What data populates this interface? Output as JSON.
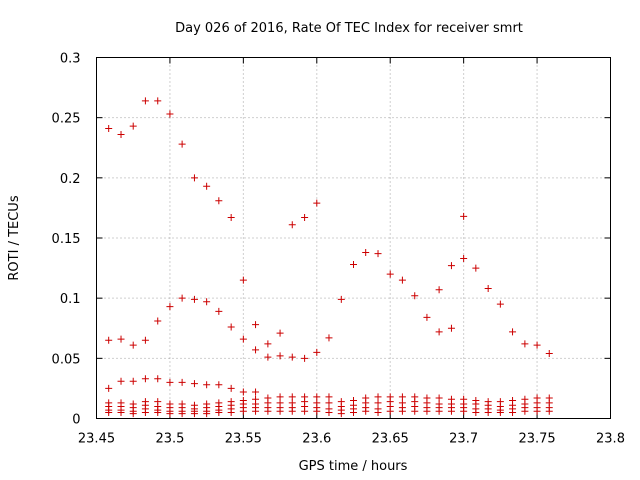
{
  "chart_data": {
    "type": "scatter",
    "title": "Day 026 of 2016, Rate Of TEC Index for receiver smrt",
    "xlabel": "GPS time / hours",
    "ylabel": "ROTI / TECUs",
    "xlim": [
      23.45,
      23.8
    ],
    "ylim": [
      0,
      0.3
    ],
    "x_ticks": [
      23.45,
      23.5,
      23.55,
      23.6,
      23.65,
      23.7,
      23.75,
      23.8
    ],
    "x_tick_labels": [
      "23.45",
      "23.5",
      "23.55",
      "23.6",
      "23.65",
      "23.7",
      "23.75",
      "23.8"
    ],
    "y_ticks": [
      0,
      0.05,
      0.1,
      0.15,
      0.2,
      0.25,
      0.3
    ],
    "y_tick_labels": [
      "0",
      "0.05",
      "0.1",
      "0.15",
      "0.2",
      "0.25",
      "0.3"
    ],
    "grid": true,
    "marker": "+",
    "color": "#cc0000",
    "series": [
      {
        "name": "receiver smrt",
        "points": [
          [
            23.4583,
            0.241
          ],
          [
            23.4667,
            0.236
          ],
          [
            23.475,
            0.243
          ],
          [
            23.4833,
            0.264
          ],
          [
            23.4917,
            0.264
          ],
          [
            23.5,
            0.253
          ],
          [
            23.5083,
            0.228
          ],
          [
            23.5167,
            0.2
          ],
          [
            23.525,
            0.193
          ],
          [
            23.5333,
            0.181
          ],
          [
            23.5417,
            0.167
          ],
          [
            23.55,
            0.115
          ],
          [
            23.4583,
            0.065
          ],
          [
            23.4667,
            0.066
          ],
          [
            23.475,
            0.061
          ],
          [
            23.4833,
            0.065
          ],
          [
            23.4917,
            0.081
          ],
          [
            23.5,
            0.093
          ],
          [
            23.5083,
            0.1
          ],
          [
            23.5167,
            0.099
          ],
          [
            23.525,
            0.097
          ],
          [
            23.5333,
            0.089
          ],
          [
            23.5417,
            0.076
          ],
          [
            23.55,
            0.066
          ],
          [
            23.5583,
            0.078
          ],
          [
            23.5583,
            0.057
          ],
          [
            23.5667,
            0.062
          ],
          [
            23.5667,
            0.051
          ],
          [
            23.575,
            0.071
          ],
          [
            23.575,
            0.052
          ],
          [
            23.5833,
            0.161
          ],
          [
            23.5833,
            0.051
          ],
          [
            23.5917,
            0.167
          ],
          [
            23.5917,
            0.05
          ],
          [
            23.6,
            0.179
          ],
          [
            23.6,
            0.055
          ],
          [
            23.6083,
            0.067
          ],
          [
            23.6167,
            0.099
          ],
          [
            23.625,
            0.128
          ],
          [
            23.6333,
            0.138
          ],
          [
            23.6417,
            0.137
          ],
          [
            23.65,
            0.12
          ],
          [
            23.6583,
            0.115
          ],
          [
            23.6667,
            0.102
          ],
          [
            23.675,
            0.084
          ],
          [
            23.6833,
            0.107
          ],
          [
            23.6833,
            0.072
          ],
          [
            23.6917,
            0.127
          ],
          [
            23.6917,
            0.075
          ],
          [
            23.7,
            0.168
          ],
          [
            23.7,
            0.133
          ],
          [
            23.7083,
            0.125
          ],
          [
            23.7167,
            0.108
          ],
          [
            23.725,
            0.095
          ],
          [
            23.7333,
            0.072
          ],
          [
            23.7417,
            0.062
          ],
          [
            23.75,
            0.061
          ],
          [
            23.7583,
            0.054
          ],
          [
            23.4583,
            0.025
          ],
          [
            23.4667,
            0.031
          ],
          [
            23.475,
            0.031
          ],
          [
            23.4833,
            0.033
          ],
          [
            23.4917,
            0.033
          ],
          [
            23.5,
            0.03
          ],
          [
            23.5083,
            0.03
          ],
          [
            23.5167,
            0.029
          ],
          [
            23.525,
            0.028
          ],
          [
            23.5333,
            0.028
          ],
          [
            23.5417,
            0.025
          ],
          [
            23.55,
            0.022
          ],
          [
            23.5583,
            0.022
          ],
          [
            23.4583,
            0.013
          ],
          [
            23.4583,
            0.01
          ],
          [
            23.4583,
            0.007
          ],
          [
            23.4583,
            0.005
          ],
          [
            23.4667,
            0.013
          ],
          [
            23.4667,
            0.01
          ],
          [
            23.4667,
            0.007
          ],
          [
            23.4667,
            0.005
          ],
          [
            23.475,
            0.012
          ],
          [
            23.475,
            0.009
          ],
          [
            23.475,
            0.006
          ],
          [
            23.475,
            0.004
          ],
          [
            23.4833,
            0.014
          ],
          [
            23.4833,
            0.011
          ],
          [
            23.4833,
            0.008
          ],
          [
            23.4833,
            0.005
          ],
          [
            23.4917,
            0.014
          ],
          [
            23.4917,
            0.01
          ],
          [
            23.4917,
            0.007
          ],
          [
            23.4917,
            0.005
          ],
          [
            23.5,
            0.012
          ],
          [
            23.5,
            0.009
          ],
          [
            23.5,
            0.006
          ],
          [
            23.5,
            0.004
          ],
          [
            23.5083,
            0.012
          ],
          [
            23.5083,
            0.009
          ],
          [
            23.5083,
            0.006
          ],
          [
            23.5083,
            0.004
          ],
          [
            23.5167,
            0.011
          ],
          [
            23.5167,
            0.008
          ],
          [
            23.5167,
            0.006
          ],
          [
            23.5167,
            0.004
          ],
          [
            23.525,
            0.012
          ],
          [
            23.525,
            0.009
          ],
          [
            23.525,
            0.006
          ],
          [
            23.525,
            0.004
          ],
          [
            23.5333,
            0.013
          ],
          [
            23.5333,
            0.01
          ],
          [
            23.5333,
            0.007
          ],
          [
            23.5333,
            0.005
          ],
          [
            23.5417,
            0.014
          ],
          [
            23.5417,
            0.011
          ],
          [
            23.5417,
            0.008
          ],
          [
            23.5417,
            0.005
          ],
          [
            23.55,
            0.015
          ],
          [
            23.55,
            0.012
          ],
          [
            23.55,
            0.009
          ],
          [
            23.55,
            0.006
          ],
          [
            23.5583,
            0.016
          ],
          [
            23.5583,
            0.012
          ],
          [
            23.5583,
            0.009
          ],
          [
            23.5583,
            0.006
          ],
          [
            23.5667,
            0.017
          ],
          [
            23.5667,
            0.013
          ],
          [
            23.5667,
            0.009
          ],
          [
            23.5667,
            0.006
          ],
          [
            23.575,
            0.018
          ],
          [
            23.575,
            0.013
          ],
          [
            23.575,
            0.009
          ],
          [
            23.575,
            0.006
          ],
          [
            23.5833,
            0.018
          ],
          [
            23.5833,
            0.013
          ],
          [
            23.5833,
            0.009
          ],
          [
            23.5833,
            0.006
          ],
          [
            23.5917,
            0.018
          ],
          [
            23.5917,
            0.014
          ],
          [
            23.5917,
            0.01
          ],
          [
            23.5917,
            0.006
          ],
          [
            23.6,
            0.018
          ],
          [
            23.6,
            0.013
          ],
          [
            23.6,
            0.009
          ],
          [
            23.6,
            0.006
          ],
          [
            23.6083,
            0.018
          ],
          [
            23.6083,
            0.013
          ],
          [
            23.6083,
            0.008
          ],
          [
            23.6083,
            0.005
          ],
          [
            23.6167,
            0.014
          ],
          [
            23.6167,
            0.01
          ],
          [
            23.6167,
            0.007
          ],
          [
            23.6167,
            0.004
          ],
          [
            23.625,
            0.015
          ],
          [
            23.625,
            0.011
          ],
          [
            23.625,
            0.008
          ],
          [
            23.625,
            0.005
          ],
          [
            23.6333,
            0.017
          ],
          [
            23.6333,
            0.013
          ],
          [
            23.6333,
            0.009
          ],
          [
            23.6333,
            0.006
          ],
          [
            23.6417,
            0.018
          ],
          [
            23.6417,
            0.013
          ],
          [
            23.6417,
            0.008
          ],
          [
            23.6417,
            0.005
          ],
          [
            23.65,
            0.018
          ],
          [
            23.65,
            0.014
          ],
          [
            23.65,
            0.01
          ],
          [
            23.65,
            0.006
          ],
          [
            23.6583,
            0.018
          ],
          [
            23.6583,
            0.013
          ],
          [
            23.6583,
            0.009
          ],
          [
            23.6583,
            0.006
          ],
          [
            23.6667,
            0.018
          ],
          [
            23.6667,
            0.014
          ],
          [
            23.6667,
            0.01
          ],
          [
            23.6667,
            0.006
          ],
          [
            23.675,
            0.017
          ],
          [
            23.675,
            0.013
          ],
          [
            23.675,
            0.009
          ],
          [
            23.675,
            0.006
          ],
          [
            23.6833,
            0.017
          ],
          [
            23.6833,
            0.012
          ],
          [
            23.6833,
            0.009
          ],
          [
            23.6833,
            0.006
          ],
          [
            23.6917,
            0.016
          ],
          [
            23.6917,
            0.012
          ],
          [
            23.6917,
            0.009
          ],
          [
            23.6917,
            0.006
          ],
          [
            23.7,
            0.016
          ],
          [
            23.7,
            0.012
          ],
          [
            23.7,
            0.009
          ],
          [
            23.7,
            0.006
          ],
          [
            23.7083,
            0.015
          ],
          [
            23.7083,
            0.012
          ],
          [
            23.7083,
            0.008
          ],
          [
            23.7083,
            0.005
          ],
          [
            23.7167,
            0.014
          ],
          [
            23.7167,
            0.011
          ],
          [
            23.7167,
            0.008
          ],
          [
            23.7167,
            0.005
          ],
          [
            23.725,
            0.014
          ],
          [
            23.725,
            0.01
          ],
          [
            23.725,
            0.007
          ],
          [
            23.725,
            0.005
          ],
          [
            23.7333,
            0.015
          ],
          [
            23.7333,
            0.011
          ],
          [
            23.7333,
            0.008
          ],
          [
            23.7333,
            0.005
          ],
          [
            23.7417,
            0.016
          ],
          [
            23.7417,
            0.012
          ],
          [
            23.7417,
            0.009
          ],
          [
            23.7417,
            0.006
          ],
          [
            23.75,
            0.017
          ],
          [
            23.75,
            0.013
          ],
          [
            23.75,
            0.009
          ],
          [
            23.75,
            0.006
          ],
          [
            23.7583,
            0.017
          ],
          [
            23.7583,
            0.013
          ],
          [
            23.7583,
            0.009
          ],
          [
            23.7583,
            0.006
          ]
        ]
      }
    ]
  }
}
